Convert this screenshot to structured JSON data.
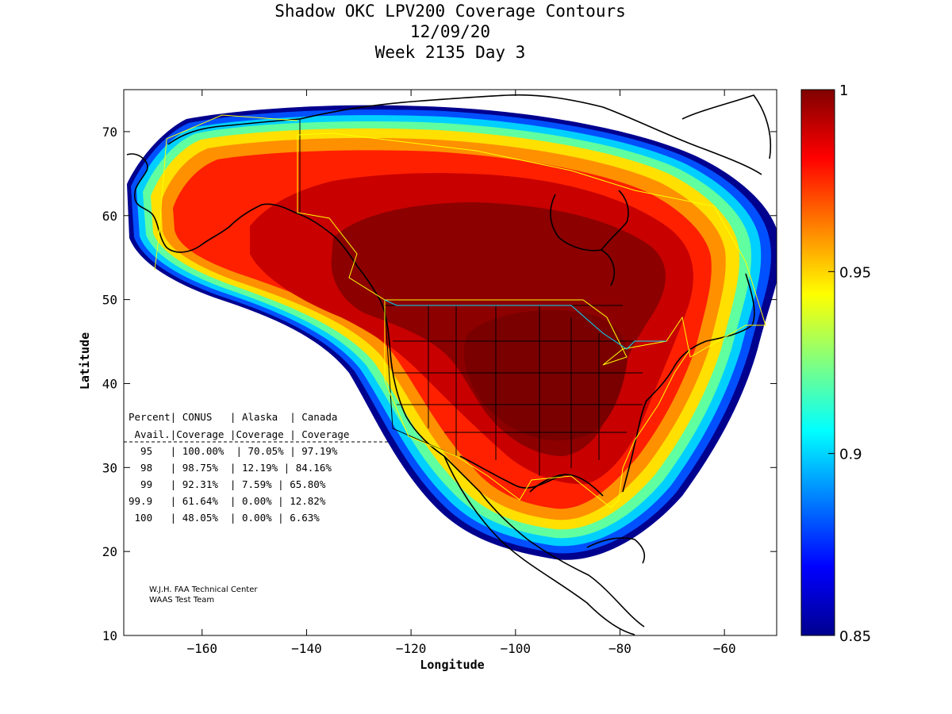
{
  "title": {
    "line1": "Shadow OKC LPV200 Coverage Contours",
    "line2": "12/09/20",
    "line3": "Week 2135 Day 3"
  },
  "axes": {
    "xlabel": "Longitude",
    "ylabel": "Latitude",
    "xlim": [
      -175,
      -50
    ],
    "ylim": [
      10,
      75
    ],
    "xticks": [
      -160,
      -140,
      -120,
      -100,
      -80,
      -60
    ],
    "yticks": [
      10,
      20,
      30,
      40,
      50,
      60,
      70
    ]
  },
  "colorbar": {
    "range": [
      0.85,
      1
    ],
    "tick_labels": [
      "1",
      "0.95",
      "0.9",
      "0.85"
    ],
    "colormap": "jet"
  },
  "table": {
    "header1": "Percent| CONUS   | Alaska  | Canada",
    "header2": " Avail.|Coverage |Coverage | Coverage",
    "rows": [
      "  95   | 100.00%  | 70.05% | 97.19%",
      "  98   | 98.75%  | 12.19% | 84.16%",
      "  99   | 92.31%  | 7.59% | 65.80%",
      "99.9   | 61.64%  | 0.00% | 12.82%",
      " 100   | 48.05%  | 0.00% | 6.63%"
    ]
  },
  "chart_data": {
    "type": "contour",
    "title": "Shadow OKC LPV200 Coverage Contours",
    "xlabel": "Longitude",
    "ylabel": "Latitude",
    "xlim": [
      -175,
      -50
    ],
    "ylim": [
      10,
      75
    ],
    "colorbar_range": [
      0.85,
      1
    ],
    "coverage_table": {
      "columns": [
        "Percent Avail.",
        "CONUS Coverage",
        "Alaska Coverage",
        "Canada Coverage"
      ],
      "rows": [
        [
          "95",
          "100.00%",
          "70.05%",
          "97.19%"
        ],
        [
          "98",
          "98.75%",
          "12.19%",
          "84.16%"
        ],
        [
          "99",
          "92.31%",
          "7.59%",
          "65.80%"
        ],
        [
          "99.9",
          "61.64%",
          "0.00%",
          "12.82%"
        ],
        [
          "100",
          "48.05%",
          "0.00%",
          "6.63%"
        ]
      ]
    }
  },
  "credit": {
    "line1": "W.J.H. FAA Technical Center",
    "line2": "WAAS Test Team"
  }
}
